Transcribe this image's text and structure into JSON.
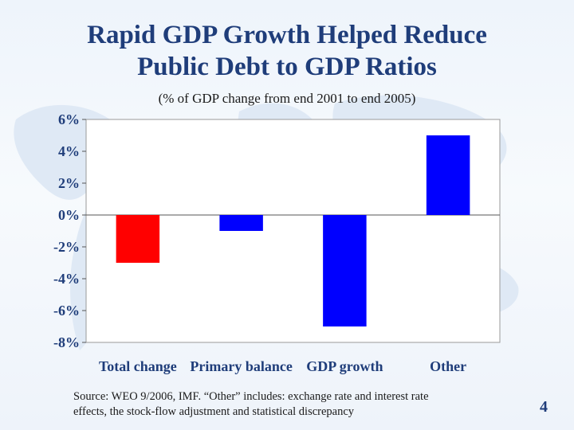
{
  "slide": {
    "title_line1": "Rapid GDP Growth Helped Reduce",
    "title_line2": "Public Debt to GDP Ratios",
    "source_line1": "Source:  WEO 9/2006, IMF.  “Other” includes: exchange rate and interest rate",
    "source_line2": "effects, the stock-flow adjustment and statistical discrepancy",
    "page_number": "4"
  },
  "chart_data": {
    "type": "bar",
    "title": "",
    "subtitle": "(% of GDP change from end 2001 to end 2005)",
    "xlabel": "",
    "ylabel": "",
    "categories": [
      "Total change",
      "Primary balance",
      "GDP growth",
      "Other"
    ],
    "values": [
      -3,
      -1,
      -7,
      5
    ],
    "bar_colors": [
      "#ff0000",
      "#0000ff",
      "#0000ff",
      "#0000ff"
    ],
    "ylim": [
      -8,
      6
    ],
    "yticks": [
      6,
      4,
      2,
      0,
      -2,
      -4,
      -6,
      -8
    ],
    "ytick_labels": [
      "6%",
      "4%",
      "2%",
      "0%",
      "-2%",
      "-4%",
      "-6%",
      "-8%"
    ],
    "grid": false,
    "legend": "none"
  }
}
